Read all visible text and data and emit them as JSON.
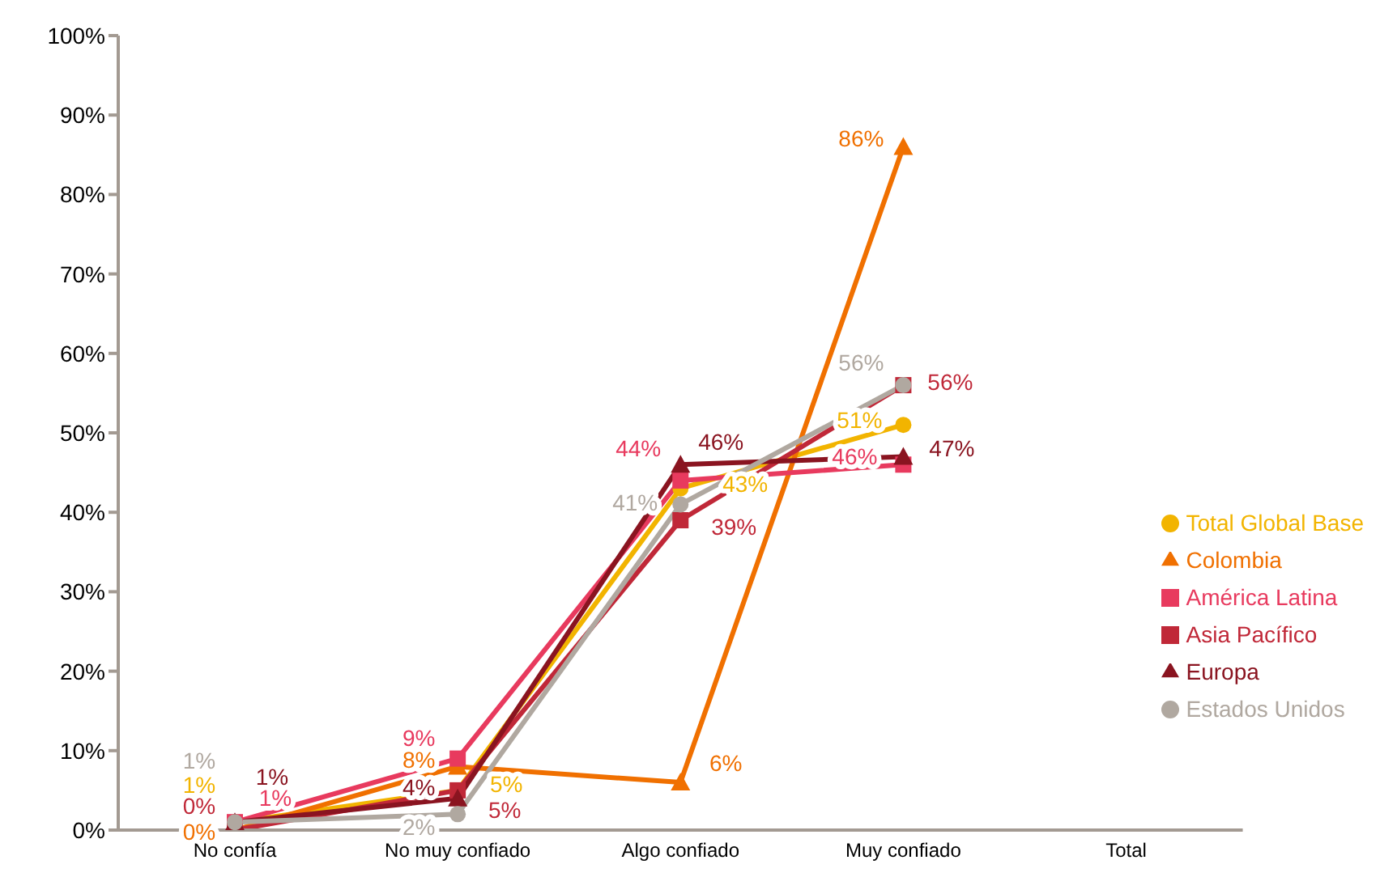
{
  "chart_data": {
    "type": "line",
    "categories": [
      "No confía",
      "No muy confiado",
      "Algo confiado",
      "Muy confiado",
      "Total"
    ],
    "series": [
      {
        "name": "Total Global Base",
        "color": "#f2b400",
        "marker": "circle",
        "values": [
          1,
          5,
          43,
          51,
          null
        ],
        "value_labels": [
          "1%",
          "5%",
          "43%",
          "51%",
          null
        ]
      },
      {
        "name": "Colombia",
        "color": "#f07000",
        "marker": "triangle",
        "values": [
          0,
          8,
          6,
          86,
          null
        ],
        "value_labels": [
          "0%",
          "8%",
          "6%",
          "86%",
          null
        ]
      },
      {
        "name": "América Latina",
        "color": "#e83a5e",
        "marker": "square",
        "values": [
          1,
          9,
          44,
          46,
          null
        ],
        "value_labels": [
          "1%",
          "9%",
          "44%",
          "46%",
          null
        ]
      },
      {
        "name": "Asia Pacífico",
        "color": "#c02838",
        "marker": "square",
        "values": [
          0,
          5,
          39,
          56,
          null
        ],
        "value_labels": [
          "0%",
          "5%",
          "39%",
          "56%",
          null
        ]
      },
      {
        "name": "Europa",
        "color": "#8a1420",
        "marker": "triangle",
        "values": [
          1,
          4,
          46,
          47,
          null
        ],
        "value_labels": [
          "1%",
          "4%",
          "46%",
          "47%",
          null
        ]
      },
      {
        "name": "Estados Unidos",
        "color": "#b0a8a0",
        "marker": "circle",
        "values": [
          1,
          2,
          41,
          56,
          null
        ],
        "value_labels": [
          "1%",
          "2%",
          "41%",
          "56%",
          null
        ]
      }
    ],
    "ylim": [
      0,
      100
    ],
    "yticks": [
      {
        "value": 0,
        "label": "0%"
      },
      {
        "value": 10,
        "label": "10%"
      },
      {
        "value": 20,
        "label": "20%"
      },
      {
        "value": 30,
        "label": "30%"
      },
      {
        "value": 40,
        "label": "40%"
      },
      {
        "value": 50,
        "label": "50%"
      },
      {
        "value": 60,
        "label": "60%"
      },
      {
        "value": 70,
        "label": "70%"
      },
      {
        "value": 80,
        "label": "80%"
      },
      {
        "value": 90,
        "label": "90%"
      },
      {
        "value": 100,
        "label": "100%"
      }
    ],
    "grid": false,
    "legend": "right"
  }
}
